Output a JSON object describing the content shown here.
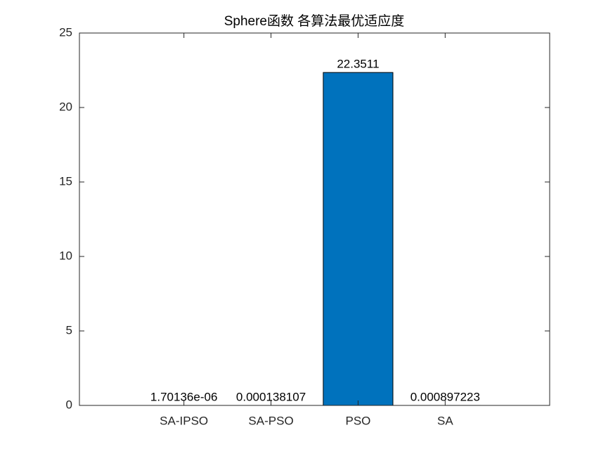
{
  "chart_data": {
    "type": "bar",
    "title": "Sphere函数 各算法最优适应度",
    "categories": [
      "SA-IPSO",
      "SA-PSO",
      "PSO",
      "SA"
    ],
    "values": [
      1.70136e-06,
      0.000138107,
      22.3511,
      0.000897223
    ],
    "value_labels": [
      "1.70136e-06",
      "0.000138107",
      "22.3511",
      "0.000897223"
    ],
    "color": "#0072bd",
    "ylim": [
      0,
      25
    ],
    "yticks": [
      0,
      5,
      10,
      15,
      20,
      25
    ],
    "grid": false
  }
}
